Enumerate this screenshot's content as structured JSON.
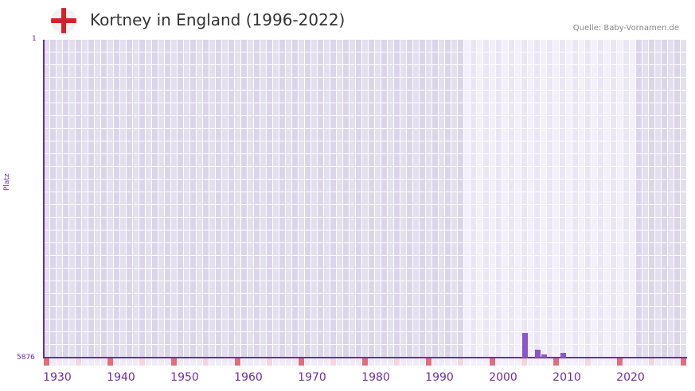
{
  "header": {
    "title": "Kortney in England (1996-2022)",
    "source": "Quelle: Baby-Vornamen.de",
    "flag_icon": "england-flag-icon"
  },
  "colors": {
    "axis": "#6b2fa0",
    "bar": "#8e55c8",
    "decade_marker": "#e46d7b",
    "mid_marker": "#f5d5de",
    "grid_dark_a": "#e4dfee",
    "grid_dark_b": "#dcd5ea",
    "grid_light_a": "#f3f0fb",
    "grid_light_b": "#ebe6f6"
  },
  "chart_data": {
    "type": "bar",
    "title": "Kortney in England (1996-2022)",
    "xlabel": "",
    "ylabel": "Platz",
    "y_inverted": true,
    "ylim": [
      1,
      5876
    ],
    "xlim": [
      1928,
      2028
    ],
    "x_tick_labels": [
      "1930",
      "1940",
      "1950",
      "1960",
      "1970",
      "1980",
      "1990",
      "2000",
      "2010",
      "2020"
    ],
    "y_tick_labels": [
      "1",
      "5876"
    ],
    "highlight_range": [
      1994,
      2020
    ],
    "grid": true,
    "legend": null,
    "categories": [
      2003,
      2005,
      2006,
      2009
    ],
    "values": [
      5420,
      5730,
      5820,
      5790
    ],
    "value_meaning": "rank (Platz); lower is more popular"
  }
}
